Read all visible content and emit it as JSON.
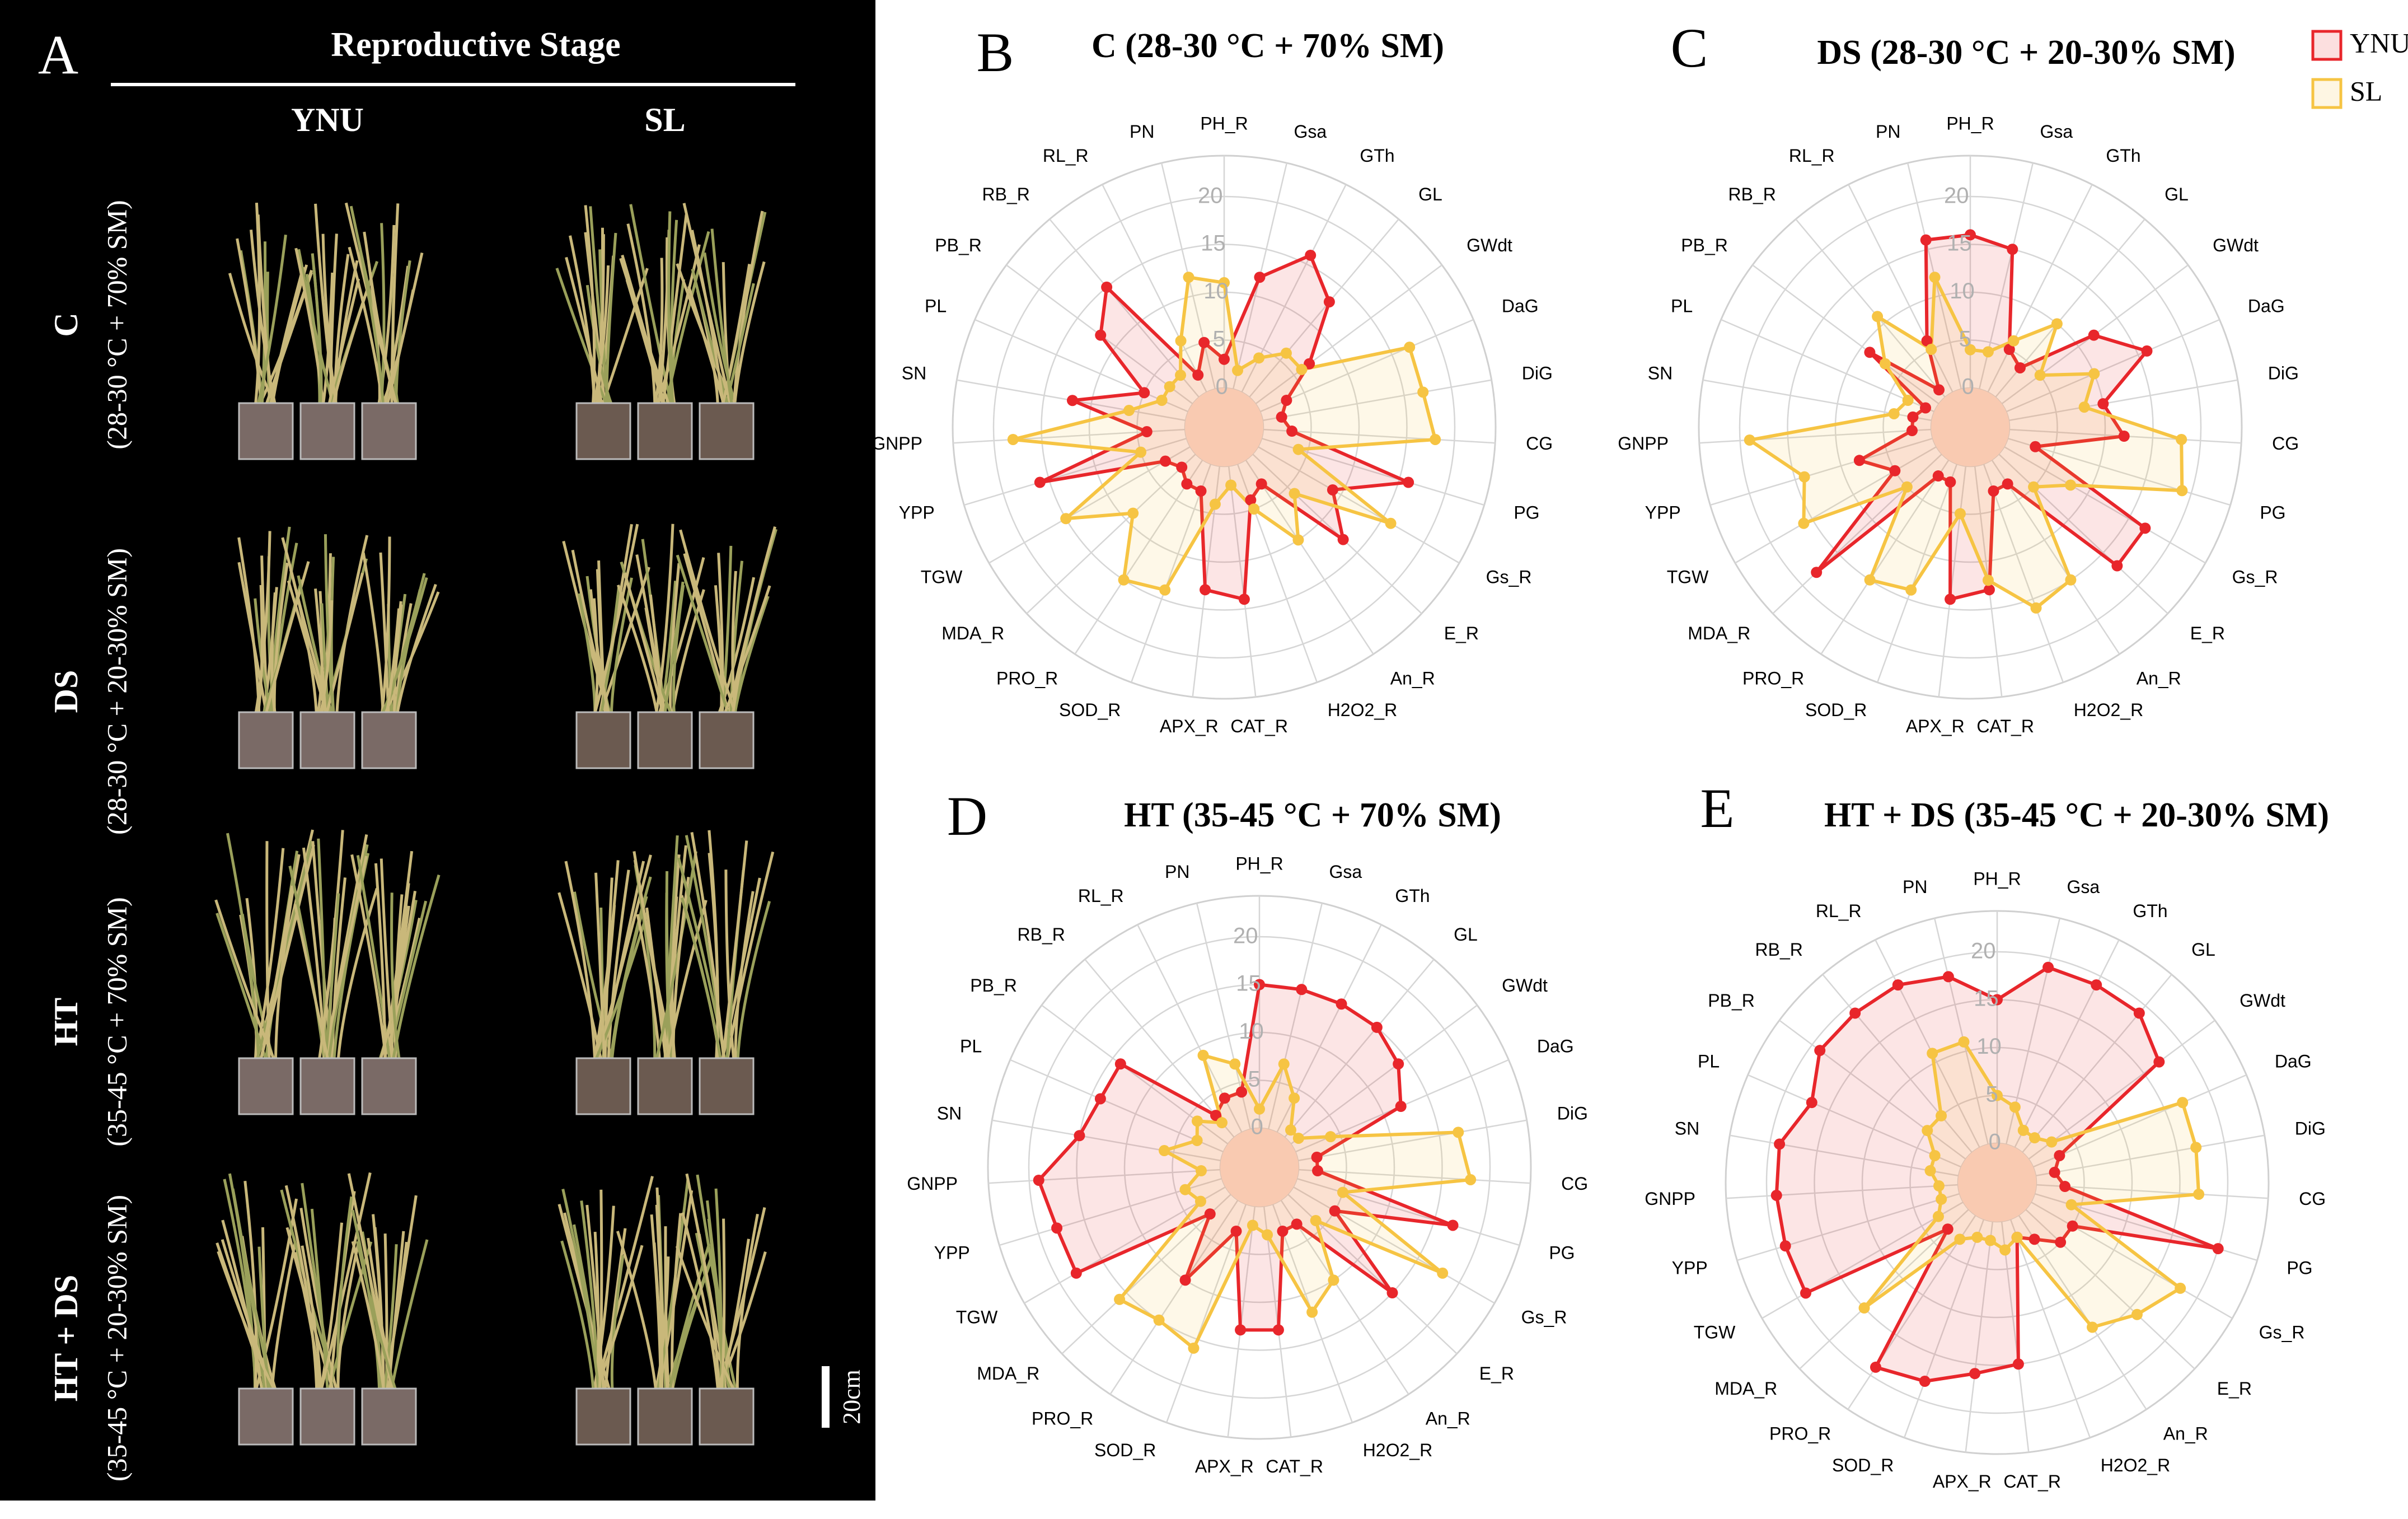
{
  "panel_a": {
    "label": "A",
    "title": "Reproductive Stage",
    "columns": [
      "YNU",
      "SL"
    ],
    "rows": [
      {
        "name": "C",
        "condition": "(28-30 °C + 70% SM)"
      },
      {
        "name": "DS",
        "condition": "(28-30 °C + 20-30% SM)"
      },
      {
        "name": "HT",
        "condition": "(35-45 °C + 70% SM)"
      },
      {
        "name": "HT + DS",
        "condition": "(35-45 °C + 20-30% SM)"
      }
    ],
    "scale_bar": "20cm"
  },
  "chart_data": [
    {
      "type": "radar",
      "panel": "B",
      "title": "C (28-30 °C + 70% SM)",
      "categories": [
        "PH_R",
        "Gsa",
        "GTh",
        "GL",
        "GWdt",
        "DaG",
        "DiG",
        "CG",
        "PG",
        "Gs_R",
        "E_R",
        "An_R",
        "H2O2_R",
        "CAT_R",
        "APX_R",
        "SOD_R",
        "PRO_R",
        "MDA_R",
        "TGW",
        "YPP",
        "GNPP",
        "SN",
        "PL",
        "PB_R",
        "RB_R",
        "RL_R",
        "PN"
      ],
      "ylim": [
        0,
        20
      ],
      "yticks": [
        0,
        5,
        10,
        15,
        20
      ],
      "series": [
        {
          "name": "YNU",
          "color": "#e8262b",
          "values": [
            3,
            12,
            16,
            13,
            7,
            3,
            2,
            3,
            16,
            9,
            13,
            3,
            4,
            14,
            13,
            3,
            3,
            2,
            3,
            16,
            4,
            12,
            5,
            12,
            15,
            2,
            5
          ]
        },
        {
          "name": "SL",
          "color": "#f6c443",
          "values": [
            11,
            2,
            4,
            6,
            6,
            17,
            17,
            18,
            4,
            16,
            6,
            10,
            5,
            2,
            4,
            14,
            15,
            9,
            15,
            5,
            18,
            6,
            3,
            3,
            3,
            6,
            12
          ]
        }
      ]
    },
    {
      "type": "radar",
      "panel": "C",
      "title": "DS (28-30 °C + 20-30% SM)",
      "categories": [
        "PH_R",
        "Gsa",
        "GTh",
        "GL",
        "GWdt",
        "DaG",
        "DiG",
        "CG",
        "PG",
        "Gs_R",
        "E_R",
        "An_R",
        "H2O2_R",
        "CAT_R",
        "APX_R",
        "SOD_R",
        "PRO_R",
        "MDA_R",
        "TGW",
        "YPP",
        "GNPP",
        "SN",
        "PL",
        "PB_R",
        "RB_R",
        "RL_R",
        "PN"
      ],
      "ylim": [
        0,
        20
      ],
      "yticks": [
        0,
        5,
        10,
        15,
        20
      ],
      "series": [
        {
          "name": "YNU",
          "color": "#e8262b",
          "values": [
            16,
            15,
            5,
            4,
            12,
            16,
            10,
            12,
            3,
            17,
            17,
            3,
            3,
            13,
            14,
            2,
            2,
            18,
            5,
            8,
            2,
            2,
            1,
            9,
            1,
            6,
            16
          ]
        },
        {
          "name": "SL",
          "color": "#f6c443",
          "values": [
            4,
            4,
            6,
            10,
            5,
            10,
            8,
            18,
            19,
            8,
            5,
            15,
            16,
            12,
            5,
            14,
            15,
            5,
            16,
            14,
            19,
            4,
            3,
            7,
            11,
            5,
            12
          ]
        }
      ]
    },
    {
      "type": "radar",
      "panel": "D",
      "title": "HT (35-45 °C + 70% SM)",
      "categories": [
        "PH_R",
        "Gsa",
        "GTh",
        "GL",
        "GWdt",
        "DaG",
        "DiG",
        "CG",
        "PG",
        "Gs_R",
        "E_R",
        "An_R",
        "H2O2_R",
        "CAT_R",
        "APX_R",
        "SOD_R",
        "PRO_R",
        "MDA_R",
        "TGW",
        "YPP",
        "GNPP",
        "SN",
        "PL",
        "PB_R",
        "RB_R",
        "RL_R",
        "PN"
      ],
      "ylim": [
        0,
        20
      ],
      "yticks": [
        0,
        5,
        10,
        15,
        20
      ],
      "series": [
        {
          "name": "YNU",
          "color": "#e8262b",
          "values": [
            15,
            15,
            15,
            15,
            14,
            12,
            2,
            2,
            17,
            5,
            15,
            3,
            3,
            13,
            13,
            3,
            10,
            3,
            18,
            18,
            19,
            15,
            14,
            14,
            3,
            4,
            4
          ]
        },
        {
          "name": "SL",
          "color": "#f6c443",
          "values": [
            2,
            7,
            4,
            1,
            1,
            4,
            17,
            18,
            5,
            18,
            4,
            10,
            12,
            3,
            2,
            16,
            15,
            16,
            3,
            4,
            2,
            6,
            3,
            4,
            2,
            9,
            7
          ]
        }
      ]
    },
    {
      "type": "radar",
      "panel": "E",
      "title": "HT + DS (35-45 °C + 20-30% SM)",
      "categories": [
        "PH_R",
        "Gsa",
        "GTh",
        "GL",
        "GWdt",
        "DaG",
        "DiG",
        "CG",
        "PG",
        "Gs_R",
        "E_R",
        "An_R",
        "H2O2_R",
        "CAT_R",
        "APX_R",
        "SOD_R",
        "PRO_R",
        "MDA_R",
        "TGW",
        "YPP",
        "GNPP",
        "SN",
        "PL",
        "PB_R",
        "RB_R",
        "RL_R",
        "PN"
      ],
      "ylim": [
        0,
        20
      ],
      "yticks": [
        0,
        5,
        10,
        15,
        20
      ],
      "series": [
        {
          "name": "YNU",
          "color": "#e8262b",
          "values": [
            15,
            19,
            19,
            19,
            17,
            3,
            2,
            3,
            20,
            5,
            5,
            3,
            2,
            15,
            16,
            18,
            19,
            3,
            19,
            19,
            19,
            19,
            17,
            19,
            19,
            19,
            18
          ]
        },
        {
          "name": "SL",
          "color": "#f6c443",
          "values": [
            5,
            4,
            2,
            2,
            3,
            17,
            17,
            17,
            4,
            18,
            16,
            14,
            2,
            3,
            2,
            2,
            3,
            15,
            3,
            2,
            2,
            3,
            3,
            5,
            5,
            11,
            11
          ]
        }
      ]
    }
  ]
}
